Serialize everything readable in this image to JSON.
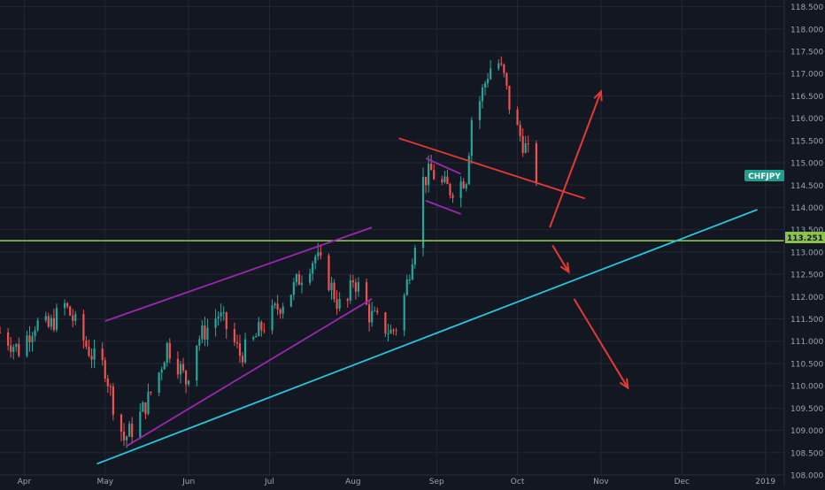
{
  "chart_data": {
    "type": "candlestick",
    "symbol": "CHFJPY",
    "grid": true,
    "colors": {
      "background": "#131722",
      "grid": "#232734",
      "text": "#9aa3b2",
      "up": "#26a69a",
      "down": "#ef5350",
      "symbol_badge": "#1f9e8f",
      "price_line": "#8bc34a"
    },
    "x_axis": {
      "date_range": [
        "2018-03-23",
        "2019-01-08"
      ],
      "tick_labels": [
        {
          "label": "Apr",
          "date": "2018-04-01"
        },
        {
          "label": "May",
          "date": "2018-05-01"
        },
        {
          "label": "Jun",
          "date": "2018-06-01"
        },
        {
          "label": "Jul",
          "date": "2018-07-01"
        },
        {
          "label": "Aug",
          "date": "2018-08-01"
        },
        {
          "label": "Sep",
          "date": "2018-09-01"
        },
        {
          "label": "Oct",
          "date": "2018-10-01"
        },
        {
          "label": "Nov",
          "date": "2018-11-01"
        },
        {
          "label": "Dec",
          "date": "2018-12-01"
        },
        {
          "label": "2019",
          "date": "2019-01-01"
        }
      ]
    },
    "y_axis": {
      "ylim": [
        108.0,
        118.65
      ],
      "tick_labels": [
        "108.000",
        "108.500",
        "109.000",
        "109.500",
        "110.000",
        "110.500",
        "111.000",
        "111.500",
        "112.000",
        "112.500",
        "113.000",
        "113.500",
        "114.000",
        "114.500",
        "115.000",
        "115.500",
        "116.000",
        "116.500",
        "117.000",
        "117.500",
        "118.000",
        "118.500"
      ]
    },
    "labels": {
      "symbol": "CHFJPY",
      "current_price": "113.251"
    },
    "horizontal_level": {
      "price": 113.251,
      "color": "#8bc34a"
    },
    "trendlines": [
      {
        "name": "rising-channel-upper",
        "color": "#9c27b0",
        "start": [
          "2018-05-01",
          111.45
        ],
        "end": [
          "2018-08-08",
          113.55
        ]
      },
      {
        "name": "rising-channel-lower",
        "color": "#9c27b0",
        "start": [
          "2018-05-09",
          108.65
        ],
        "end": [
          "2018-08-08",
          111.95
        ]
      },
      {
        "name": "flag-upper",
        "color": "#9c27b0",
        "start": [
          "2018-08-28",
          115.1
        ],
        "end": [
          "2018-09-10",
          114.75
        ]
      },
      {
        "name": "flag-lower",
        "color": "#9c27b0",
        "start": [
          "2018-08-28",
          114.15
        ],
        "end": [
          "2018-09-10",
          113.85
        ]
      },
      {
        "name": "support-trendline",
        "color": "#26c6da",
        "start": [
          "2018-04-28",
          108.25
        ],
        "end": [
          "2018-12-29",
          113.95
        ]
      },
      {
        "name": "resistance-breakout-line",
        "color": "#e53935",
        "start": [
          "2018-08-18",
          115.55
        ],
        "end": [
          "2018-10-26",
          114.2
        ]
      }
    ],
    "arrows": [
      {
        "name": "bullish-arrow",
        "color": "#e53935",
        "start": [
          "2018-10-13",
          113.55
        ],
        "end": [
          "2018-11-01",
          116.6
        ]
      },
      {
        "name": "bearish-arrow-short",
        "color": "#e53935",
        "start": [
          "2018-10-14",
          113.15
        ],
        "end": [
          "2018-10-20",
          112.55
        ]
      },
      {
        "name": "bearish-arrow-long",
        "color": "#e53935",
        "start": [
          "2018-10-22",
          111.95
        ],
        "end": [
          "2018-11-11",
          109.95
        ]
      }
    ],
    "anchors": [
      [
        "2018-03-23",
        111.2
      ],
      [
        "2018-03-30",
        110.8
      ],
      [
        "2018-04-05",
        111.4
      ],
      [
        "2018-04-10",
        111.3
      ],
      [
        "2018-04-16",
        111.8
      ],
      [
        "2018-04-19",
        111.5
      ],
      [
        "2018-04-24",
        110.9
      ],
      [
        "2018-04-27",
        110.6
      ],
      [
        "2018-05-01",
        110.4
      ],
      [
        "2018-05-04",
        109.6
      ],
      [
        "2018-05-08",
        108.8
      ],
      [
        "2018-05-12",
        109.1
      ],
      [
        "2018-05-17",
        109.7
      ],
      [
        "2018-05-21",
        110.3
      ],
      [
        "2018-05-24",
        110.9
      ],
      [
        "2018-05-28",
        110.5
      ],
      [
        "2018-05-31",
        110.1
      ],
      [
        "2018-06-04",
        111.0
      ],
      [
        "2018-06-08",
        111.3
      ],
      [
        "2018-06-12",
        111.6
      ],
      [
        "2018-06-16",
        111.2
      ],
      [
        "2018-06-20",
        110.7
      ],
      [
        "2018-06-24",
        110.9
      ],
      [
        "2018-06-28",
        111.3
      ],
      [
        "2018-07-02",
        111.6
      ],
      [
        "2018-07-06",
        111.9
      ],
      [
        "2018-07-10",
        112.2
      ],
      [
        "2018-07-14",
        112.6
      ],
      [
        "2018-07-18",
        112.9
      ],
      [
        "2018-07-22",
        112.5
      ],
      [
        "2018-07-26",
        111.9
      ],
      [
        "2018-07-29",
        111.6
      ],
      [
        "2018-08-01",
        112.4
      ],
      [
        "2018-08-04",
        112.1
      ],
      [
        "2018-08-07",
        111.6
      ],
      [
        "2018-08-11",
        111.4
      ],
      [
        "2018-08-15",
        111.2
      ],
      [
        "2018-08-18",
        111.4
      ],
      [
        "2018-08-21",
        112.3
      ],
      [
        "2018-08-24",
        113.3
      ],
      [
        "2018-08-27",
        114.6
      ],
      [
        "2018-08-30",
        114.8
      ],
      [
        "2018-09-03",
        114.5
      ],
      [
        "2018-09-06",
        114.4
      ],
      [
        "2018-09-09",
        114.5
      ],
      [
        "2018-09-12",
        114.7
      ],
      [
        "2018-09-14",
        116.0
      ],
      [
        "2018-09-17",
        116.4
      ],
      [
        "2018-09-20",
        117.0
      ],
      [
        "2018-09-23",
        117.4
      ],
      [
        "2018-09-26",
        116.9
      ],
      [
        "2018-09-29",
        116.0
      ],
      [
        "2018-10-02",
        115.6
      ],
      [
        "2018-10-05",
        115.2
      ],
      [
        "2018-10-08",
        114.7
      ]
    ]
  }
}
